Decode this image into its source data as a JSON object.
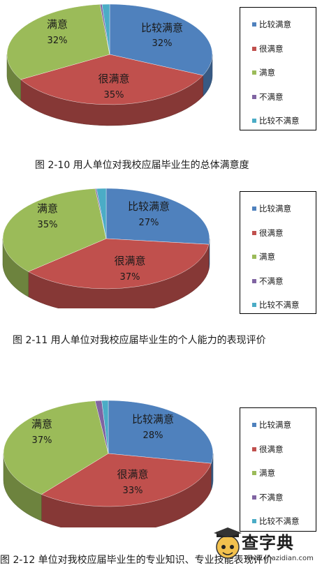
{
  "charts": [
    {
      "caption": "图 2-10    用人单位对我校应届毕业生的总体满意度",
      "legend": [
        "比较满意",
        "很满意",
        "满意",
        "不满意",
        "比较不满意"
      ]
    },
    {
      "caption": "图 2-11    用人单位对我校应届毕业生的个人能力的表现评价",
      "legend": [
        "比较满意",
        "很满意",
        "满意",
        "不满意",
        "比较不满意"
      ]
    },
    {
      "caption": "图 2-12    单位对我校应届毕业生的专业知识、专业技能表现评价",
      "legend": [
        "比较满意",
        "很满意",
        "满意",
        "不满意",
        "比较不满意"
      ]
    }
  ],
  "colors": {
    "比较满意": "#4f81bd",
    "很满意": "#c0504d",
    "满意": "#9bbb59",
    "不满意": "#8064a2",
    "比较不满意": "#4bacc6"
  },
  "watermark": {
    "logo_text": "查字典",
    "url": "www.chazidian.com"
  },
  "chart_data": [
    {
      "type": "pie",
      "title": "",
      "categories": [
        "比较满意",
        "很满意",
        "满意",
        "不满意",
        "比较不满意"
      ],
      "values": [
        32,
        35,
        32,
        0.3,
        1.2
      ],
      "data_labels": [
        {
          "name": "比较满意",
          "value": "32%"
        },
        {
          "name": "很满意",
          "value": "35%"
        },
        {
          "name": "满意",
          "value": "32%"
        }
      ],
      "legend_position": "right"
    },
    {
      "type": "pie",
      "title": "",
      "categories": [
        "比较满意",
        "很满意",
        "满意",
        "不满意",
        "比较不满意"
      ],
      "values": [
        27,
        37,
        35,
        0.2,
        1.5
      ],
      "data_labels": [
        {
          "name": "比较满意",
          "value": "27%"
        },
        {
          "name": "很满意",
          "value": "37%"
        },
        {
          "name": "满意",
          "value": "35%"
        }
      ],
      "legend_position": "right"
    },
    {
      "type": "pie",
      "title": "",
      "categories": [
        "比较满意",
        "很满意",
        "满意",
        "不满意",
        "比较不满意"
      ],
      "values": [
        28,
        33,
        37,
        1,
        1
      ],
      "data_labels": [
        {
          "name": "比较满意",
          "value": "28%"
        },
        {
          "name": "很满意",
          "value": "33%"
        },
        {
          "name": "满意",
          "value": "37%"
        }
      ],
      "legend_position": "right"
    }
  ]
}
